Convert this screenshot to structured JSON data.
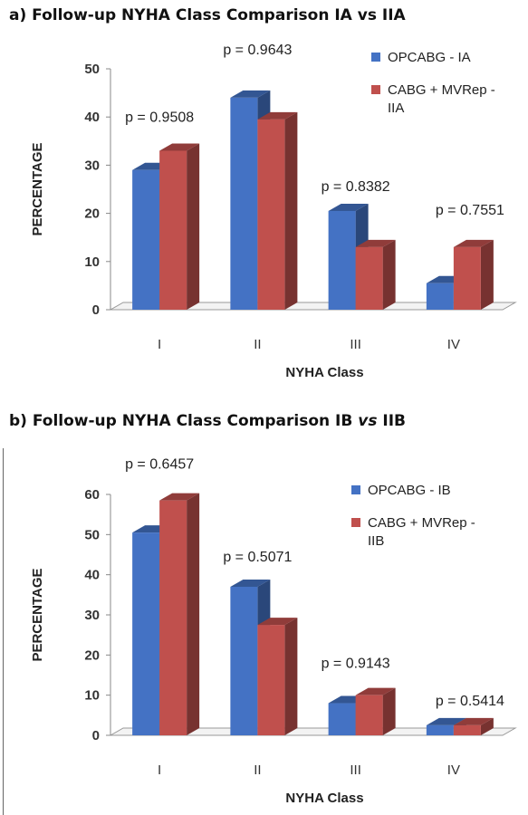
{
  "chart_data": [
    {
      "type": "bar",
      "title": "a) Follow-up NYHA Class Comparison IA vs IIA",
      "xlabel": "NYHA Class",
      "ylabel": "PERCENTAGE",
      "ylim": [
        0,
        50
      ],
      "yticks": [
        0,
        10,
        20,
        30,
        40,
        50
      ],
      "categories": [
        "I",
        "II",
        "III",
        "IV"
      ],
      "series": [
        {
          "name": "OPCABG - IA",
          "values": [
            29,
            44,
            20.5,
            5.5
          ],
          "color": "#4472c4"
        },
        {
          "name": "CABG + MVRep - IIA",
          "values": [
            33,
            39.5,
            13,
            13
          ],
          "color": "#c0504d"
        }
      ],
      "annotations": [
        "p = 0.9508",
        "p = 0.9643",
        "p = 0.8382",
        "p = 0.7551"
      ],
      "legend": "top-right",
      "grid": false
    },
    {
      "type": "bar",
      "title_parts": [
        "b) Follow-up NYHA Class Comparison IB ",
        "vs",
        " IIB"
      ],
      "xlabel": "NYHA Class",
      "ylabel": "PERCENTAGE",
      "ylim": [
        0,
        60
      ],
      "yticks": [
        0,
        10,
        20,
        30,
        40,
        50,
        60
      ],
      "categories": [
        "I",
        "II",
        "III",
        "IV"
      ],
      "series": [
        {
          "name": "OPCABG - IB",
          "values": [
            50.5,
            37,
            8,
            2.5
          ],
          "color": "#4472c4"
        },
        {
          "name": "CABG + MVRep - IIB",
          "values": [
            58.5,
            27.5,
            10,
            2.5
          ],
          "color": "#c0504d"
        }
      ],
      "annotations": [
        "p = 0.6457",
        "p = 0.5071",
        "p = 0.9143",
        "p = 0.5414"
      ],
      "legend": "top-right",
      "grid": false
    }
  ]
}
